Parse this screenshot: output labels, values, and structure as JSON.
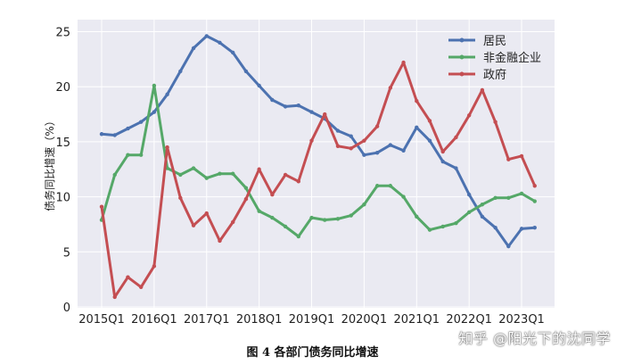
{
  "chart_data": {
    "type": "line",
    "title": "",
    "xlabel": "",
    "ylabel": "债务同比增速（%）",
    "ylim": [
      0,
      25
    ],
    "yticks": [
      0,
      5,
      10,
      15,
      20,
      25
    ],
    "xtick_labels": [
      "2015Q1",
      "2016Q1",
      "2017Q1",
      "2018Q1",
      "2019Q1",
      "2020Q1",
      "2021Q1",
      "2022Q1",
      "2023Q1"
    ],
    "x": [
      "2015Q1",
      "2015Q2",
      "2015Q3",
      "2015Q4",
      "2016Q1",
      "2016Q2",
      "2016Q3",
      "2016Q4",
      "2017Q1",
      "2017Q2",
      "2017Q3",
      "2017Q4",
      "2018Q1",
      "2018Q2",
      "2018Q3",
      "2018Q4",
      "2019Q1",
      "2019Q2",
      "2019Q3",
      "2019Q4",
      "2020Q1",
      "2020Q2",
      "2020Q3",
      "2020Q4",
      "2021Q1",
      "2021Q2",
      "2021Q3",
      "2021Q4",
      "2022Q1",
      "2022Q2",
      "2022Q3",
      "2022Q4",
      "2023Q1",
      "2023Q2"
    ],
    "grid": true,
    "legend_position": "top-right",
    "series": [
      {
        "name": "居民",
        "color": "#4c72b0",
        "values": [
          15.7,
          15.6,
          16.2,
          16.8,
          17.7,
          19.3,
          21.4,
          23.5,
          24.6,
          24.0,
          23.1,
          21.4,
          20.1,
          18.8,
          18.2,
          18.3,
          17.7,
          17.1,
          16.0,
          15.5,
          13.8,
          14.0,
          14.7,
          14.2,
          16.3,
          15.1,
          13.2,
          12.6,
          10.2,
          8.2,
          7.2,
          5.5,
          7.1,
          7.2
        ]
      },
      {
        "name": "非金融企业",
        "color": "#55a868",
        "values": [
          7.9,
          12.0,
          13.8,
          13.8,
          20.1,
          12.6,
          12.0,
          12.6,
          11.7,
          12.1,
          12.1,
          10.8,
          8.7,
          8.1,
          7.3,
          6.4,
          8.1,
          7.9,
          8.0,
          8.3,
          9.3,
          11.0,
          11.0,
          10.0,
          8.2,
          7.0,
          7.3,
          7.6,
          8.6,
          9.3,
          9.9,
          9.9,
          10.3,
          9.6
        ]
      },
      {
        "name": "政府",
        "color": "#c44e52",
        "values": [
          9.1,
          0.9,
          2.7,
          1.8,
          3.7,
          14.5,
          9.9,
          7.4,
          8.5,
          6.0,
          7.7,
          9.8,
          12.5,
          10.2,
          12.0,
          11.4,
          15.1,
          17.5,
          14.6,
          14.4,
          15.1,
          16.4,
          19.9,
          22.2,
          18.7,
          16.9,
          14.1,
          15.4,
          17.4,
          19.7,
          16.8,
          13.4,
          13.7,
          11.0
        ]
      }
    ]
  },
  "caption": "图 4  各部门债务同比增速",
  "watermark": "知乎 @阳光下的沈同学"
}
